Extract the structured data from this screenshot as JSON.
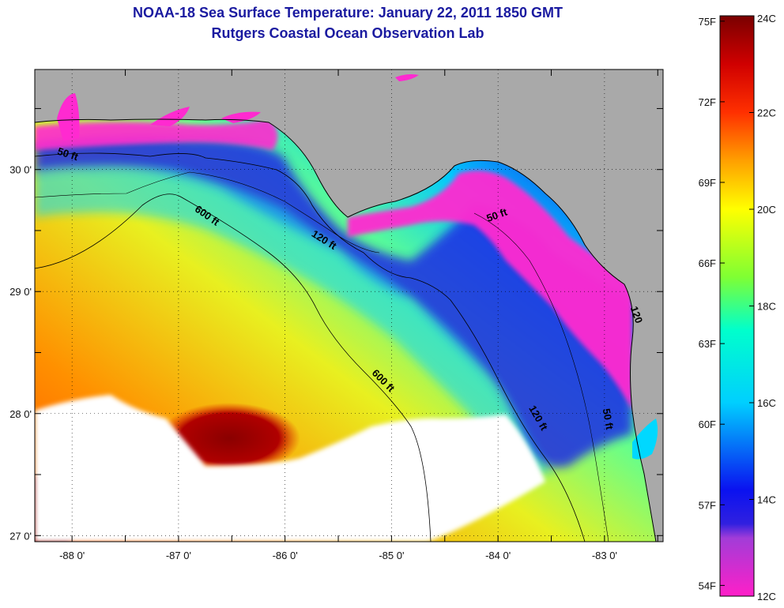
{
  "title": "NOAA-18 Sea Surface Temperature:  January 22, 2011 1850 GMT",
  "subtitle": "Rutgers Coastal Ocean Observation Lab",
  "map": {
    "lon_range": [
      -88.35,
      -82.45
    ],
    "lat_range": [
      26.95,
      30.82
    ],
    "lon_ticks": [
      {
        "value": -88,
        "label": "-88 0'"
      },
      {
        "value": -87,
        "label": "-87 0'"
      },
      {
        "value": -86,
        "label": "-86 0'"
      },
      {
        "value": -85,
        "label": "-85 0'"
      },
      {
        "value": -84,
        "label": "-84 0'"
      },
      {
        "value": -83,
        "label": "-83 0'"
      }
    ],
    "lat_ticks": [
      {
        "value": 30,
        "label": "30 0'"
      },
      {
        "value": 29,
        "label": "29 0'"
      },
      {
        "value": 28,
        "label": "28 0'"
      },
      {
        "value": 27,
        "label": "27 0'"
      }
    ],
    "contour_labels": [
      {
        "text": "50 ft",
        "lon": -88.05,
        "lat": 30.1,
        "rot": 18
      },
      {
        "text": "600 ft",
        "lon": -86.75,
        "lat": 29.6,
        "rot": 35
      },
      {
        "text": "120 ft",
        "lon": -85.65,
        "lat": 29.4,
        "rot": 32
      },
      {
        "text": "50 ft",
        "lon": -84.0,
        "lat": 29.6,
        "rot": -20
      },
      {
        "text": "600 ft",
        "lon": -85.1,
        "lat": 28.25,
        "rot": 45
      },
      {
        "text": "120 ft",
        "lon": -83.65,
        "lat": 27.95,
        "rot": 60
      },
      {
        "text": "50 ft",
        "lon": -83.0,
        "lat": 27.95,
        "rot": 80
      },
      {
        "text": "120",
        "lon": -82.73,
        "lat": 28.8,
        "rot": 70
      }
    ],
    "colors": {
      "land": "#a9a9a9",
      "cloud": "#ffffff",
      "contour": "#000000"
    }
  },
  "colorbar": {
    "celsius_labels": [
      "24C",
      "22C",
      "20C",
      "18C",
      "16C",
      "14C",
      "12C"
    ],
    "fahrenheit_labels": [
      "75F",
      "72F",
      "69F",
      "66F",
      "63F",
      "60F",
      "57F",
      "54F"
    ],
    "fahrenheit_values": [
      75,
      72,
      69,
      66,
      63,
      60,
      57,
      54
    ],
    "celsius_range": [
      12,
      24
    ],
    "stops": [
      {
        "c": 12,
        "color": "#ff1fc8"
      },
      {
        "c": 13.2,
        "color": "#a23cd8"
      },
      {
        "c": 13.5,
        "color": "#3020e0"
      },
      {
        "c": 14.2,
        "color": "#0a12f0"
      },
      {
        "c": 16,
        "color": "#00cfff"
      },
      {
        "c": 17.5,
        "color": "#00ffcc"
      },
      {
        "c": 18.6,
        "color": "#7fff33"
      },
      {
        "c": 20,
        "color": "#ffff00"
      },
      {
        "c": 21,
        "color": "#ffa000"
      },
      {
        "c": 22,
        "color": "#ff3000"
      },
      {
        "c": 23,
        "color": "#d00000"
      },
      {
        "c": 24,
        "color": "#7a0000"
      }
    ]
  }
}
